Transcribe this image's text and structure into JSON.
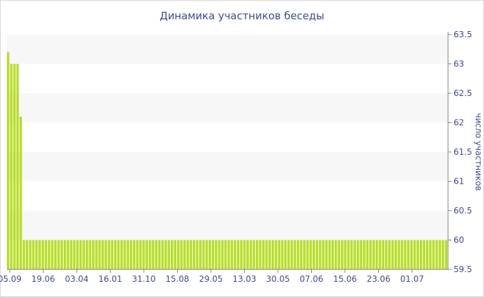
{
  "chart_data": {
    "type": "bar",
    "title": "Динамика участников беседы",
    "ylabel": "число участников",
    "xlabel": "",
    "ylim": [
      59.5,
      63.5
    ],
    "y_ticks": [
      "59.5",
      "60",
      "60.5",
      "61",
      "61.5",
      "62",
      "62.5",
      "63",
      "63.5"
    ],
    "x_tick_labels": [
      "05.09",
      "19.06",
      "03.04",
      "16.01",
      "31.10",
      "15.08",
      "29.05",
      "13.03",
      "30.05",
      "07.06",
      "15.06",
      "23.06",
      "01.07"
    ],
    "grid": "alternating horizontal bands",
    "colors": {
      "bar": "#b8de2a",
      "band": "#f7f7f7",
      "axis": "#3e4a8c"
    },
    "values": [
      63.2,
      63.0,
      63.0,
      63.0,
      62.1,
      60,
      60,
      60,
      60,
      60,
      60,
      60,
      60,
      60,
      60,
      60,
      60,
      60,
      60,
      60,
      60,
      60,
      60,
      60,
      60,
      60,
      60,
      60,
      60,
      60,
      60,
      60,
      60,
      60,
      60,
      60,
      60,
      60,
      60,
      60,
      60,
      60,
      60,
      60,
      60,
      60,
      60,
      60,
      60,
      60,
      60,
      60,
      60,
      60,
      60,
      60,
      60,
      60,
      60,
      60,
      60,
      60,
      60,
      60,
      60,
      60,
      60,
      60,
      60,
      60,
      60,
      60,
      60,
      60,
      60,
      60,
      60,
      60,
      60,
      60,
      60,
      60,
      60,
      60,
      60,
      60,
      60,
      60,
      60,
      60,
      60,
      60,
      60,
      60,
      60,
      60,
      60,
      60,
      60,
      60,
      60,
      60,
      60,
      60,
      60,
      60,
      60,
      60,
      60,
      60,
      60,
      60,
      60,
      60,
      60,
      60,
      60,
      60,
      60,
      60,
      60,
      60,
      60,
      60,
      60,
      60,
      60,
      60,
      60,
      60,
      60,
      60,
      60,
      60,
      60,
      60,
      60,
      60,
      60,
      60
    ]
  }
}
